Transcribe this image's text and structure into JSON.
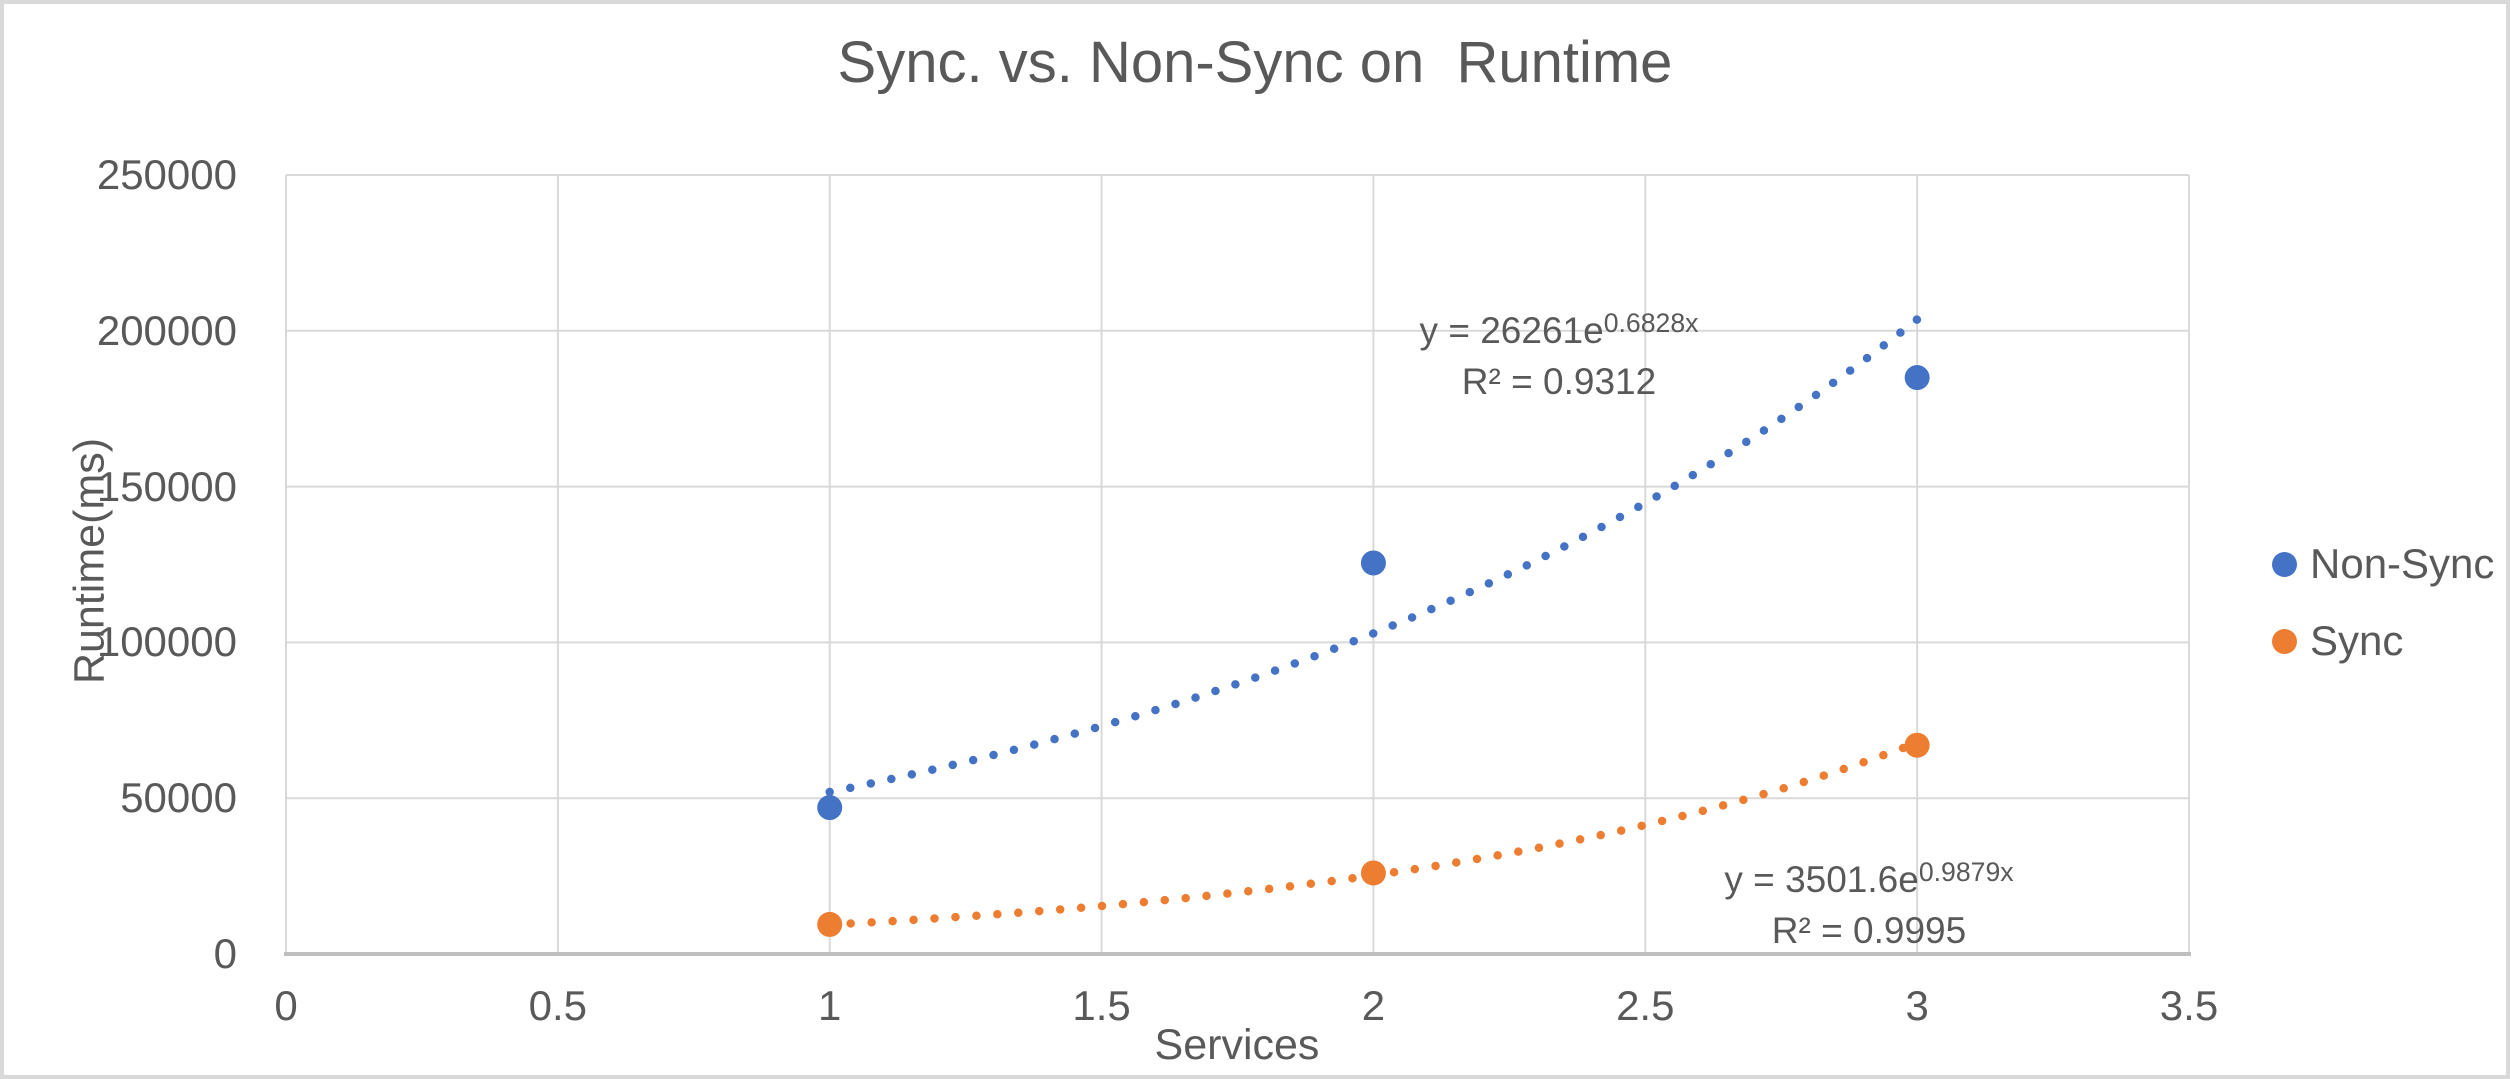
{
  "chart_data": {
    "type": "scatter",
    "title": "Sync. vs. Non-Sync on  Runtime",
    "xlabel": "Services",
    "ylabel": "Runtime(ms)",
    "xlim": [
      0,
      3.5
    ],
    "ylim": [
      0,
      250000
    ],
    "x_ticks": [
      "0",
      "0.5",
      "1",
      "1.5",
      "2",
      "2.5",
      "3",
      "3.5"
    ],
    "x_tick_values": [
      0,
      0.5,
      1,
      1.5,
      2,
      2.5,
      3,
      3.5
    ],
    "y_ticks": [
      "0",
      "50000",
      "100000",
      "150000",
      "200000",
      "250000"
    ],
    "y_tick_values": [
      0,
      50000,
      100000,
      150000,
      200000,
      250000
    ],
    "grid": true,
    "legend_position": "right",
    "series": [
      {
        "name": "Non-Sync",
        "color": "#4472C4",
        "x": [
          1,
          2,
          3
        ],
        "y": [
          47000,
          125500,
          185000
        ],
        "trendline": {
          "type": "exponential",
          "a": 26261,
          "b": 0.6828,
          "r2": 0.9312,
          "x_range": [
            1,
            3
          ],
          "equation_base": "y = 26261e",
          "equation_exponent": "0.6828x",
          "r2_label": "R² = 0.9312"
        }
      },
      {
        "name": "Sync",
        "color": "#ED7D31",
        "x": [
          1,
          2,
          3
        ],
        "y": [
          9500,
          26000,
          67000
        ],
        "trendline": {
          "type": "exponential",
          "a": 3501.6,
          "b": 0.9879,
          "r2": 0.9995,
          "x_range": [
            1,
            3
          ],
          "equation_base": "y = 3501.6e",
          "equation_exponent": "0.9879x",
          "r2_label": "R² = 0.9995"
        }
      }
    ],
    "colors": {
      "text": "#595959",
      "gridline": "#D9D9D9",
      "axis_line": "#BFBFBF",
      "frame": "#D9D9D9",
      "background": "#FFFFFF"
    }
  }
}
